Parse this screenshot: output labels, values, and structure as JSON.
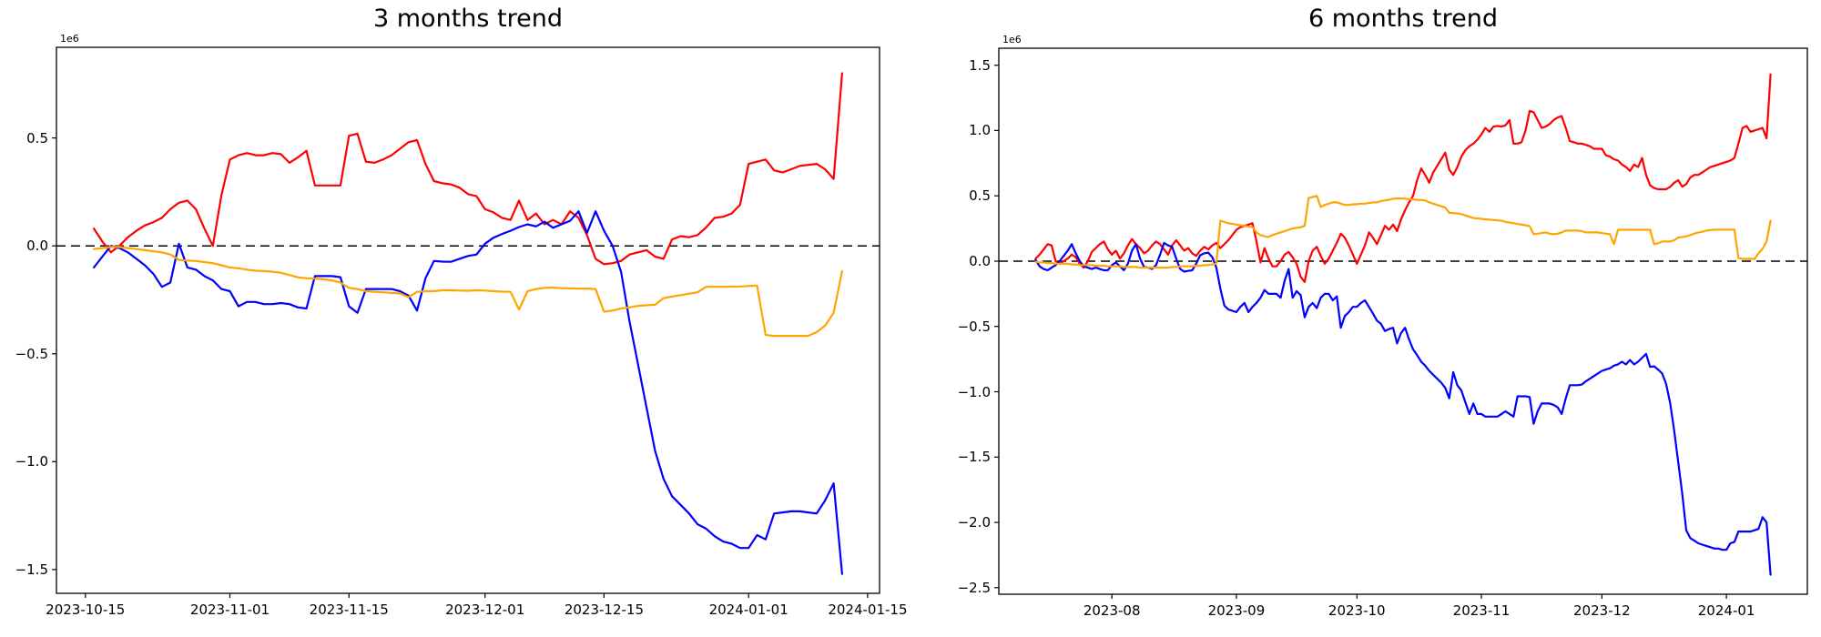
{
  "page": {
    "background": "#ffffff"
  },
  "chart_data": [
    {
      "type": "line",
      "title": "3 months trend",
      "offset_label": "1e6",
      "unit_scale": 1000000,
      "grid": false,
      "legend": null,
      "zero_line": {
        "style": "dashed",
        "color": "#000000"
      },
      "x_start_date": "2023-10-16",
      "x_tick_dates": [
        "2023-10-15",
        "2023-11-01",
        "2023-11-15",
        "2023-12-01",
        "2023-12-15",
        "2024-01-01",
        "2024-01-15"
      ],
      "x_tick_labels": [
        "2023-10-15",
        "2023-11-01",
        "2023-11-15",
        "2023-12-01",
        "2023-12-15",
        "2024-01-01",
        "2024-01-15"
      ],
      "y_tick_values": [
        0.5,
        0.0,
        -0.5,
        -1.0,
        -1.5
      ],
      "y_tick_labels": [
        "0.5",
        "0.0",
        "−0.5",
        "−1.0",
        "−1.5"
      ],
      "ylim": [
        -1.61,
        0.92
      ],
      "series": [
        {
          "name": "series-red",
          "color": "#ff0000",
          "values": [
            0.08,
            0.02,
            -0.03,
            0.0,
            0.04,
            0.07,
            0.095,
            0.11,
            0.13,
            0.17,
            0.2,
            0.21,
            0.17,
            0.08,
            0.0,
            0.235,
            0.4,
            0.42,
            0.43,
            0.42,
            0.42,
            0.43,
            0.425,
            0.385,
            0.41,
            0.44,
            0.28,
            0.28,
            0.28,
            0.28,
            0.51,
            0.52,
            0.39,
            0.385,
            0.4,
            0.42,
            0.45,
            0.48,
            0.49,
            0.38,
            0.3,
            0.29,
            0.285,
            0.27,
            0.24,
            0.23,
            0.17,
            0.155,
            0.13,
            0.12,
            0.21,
            0.12,
            0.15,
            0.1,
            0.12,
            0.1,
            0.16,
            0.13,
            0.05,
            -0.06,
            -0.085,
            -0.08,
            -0.07,
            -0.04,
            -0.03,
            -0.02,
            -0.05,
            -0.06,
            0.03,
            0.045,
            0.04,
            0.05,
            0.085,
            0.13,
            0.135,
            0.15,
            0.19,
            0.38,
            0.39,
            0.4,
            0.35,
            0.34,
            0.355,
            0.37,
            0.375,
            0.38,
            0.355,
            0.31,
            0.8
          ]
        },
        {
          "name": "series-blue",
          "color": "#0000ff",
          "values": [
            -0.1,
            -0.05,
            0.0,
            -0.01,
            -0.03,
            -0.06,
            -0.09,
            -0.13,
            -0.19,
            -0.17,
            0.01,
            -0.1,
            -0.11,
            -0.14,
            -0.16,
            -0.2,
            -0.21,
            -0.28,
            -0.26,
            -0.26,
            -0.27,
            -0.27,
            -0.265,
            -0.27,
            -0.285,
            -0.29,
            -0.14,
            -0.14,
            -0.14,
            -0.145,
            -0.28,
            -0.31,
            -0.2,
            -0.2,
            -0.2,
            -0.2,
            -0.21,
            -0.23,
            -0.3,
            -0.15,
            -0.07,
            -0.073,
            -0.074,
            -0.06,
            -0.047,
            -0.04,
            0.01,
            0.038,
            0.055,
            0.07,
            0.087,
            0.1,
            0.09,
            0.112,
            0.084,
            0.1,
            0.116,
            0.16,
            0.06,
            0.16,
            0.07,
            0.0,
            -0.12,
            -0.35,
            -0.55,
            -0.75,
            -0.95,
            -1.08,
            -1.16,
            -1.2,
            -1.24,
            -1.29,
            -1.31,
            -1.345,
            -1.37,
            -1.38,
            -1.4,
            -1.4,
            -1.34,
            -1.36,
            -1.24,
            -1.235,
            -1.23,
            -1.23,
            -1.235,
            -1.24,
            -1.18,
            -1.1,
            -1.52
          ]
        },
        {
          "name": "series-orange",
          "color": "#ffa500",
          "values": [
            -0.015,
            -0.01,
            -0.005,
            -0.005,
            -0.01,
            -0.015,
            -0.02,
            -0.025,
            -0.03,
            -0.04,
            -0.065,
            -0.068,
            -0.07,
            -0.075,
            -0.08,
            -0.09,
            -0.1,
            -0.104,
            -0.11,
            -0.115,
            -0.117,
            -0.12,
            -0.125,
            -0.135,
            -0.146,
            -0.15,
            -0.152,
            -0.155,
            -0.16,
            -0.17,
            -0.195,
            -0.2,
            -0.21,
            -0.213,
            -0.215,
            -0.218,
            -0.22,
            -0.238,
            -0.213,
            -0.21,
            -0.21,
            -0.206,
            -0.206,
            -0.207,
            -0.208,
            -0.206,
            -0.207,
            -0.21,
            -0.212,
            -0.213,
            -0.295,
            -0.21,
            -0.2,
            -0.195,
            -0.193,
            -0.196,
            -0.197,
            -0.198,
            -0.198,
            -0.2,
            -0.305,
            -0.3,
            -0.29,
            -0.285,
            -0.278,
            -0.275,
            -0.273,
            -0.242,
            -0.235,
            -0.228,
            -0.222,
            -0.215,
            -0.19,
            -0.19,
            -0.19,
            -0.189,
            -0.188,
            -0.186,
            -0.184,
            -0.413,
            -0.417,
            -0.417,
            -0.417,
            -0.417,
            -0.417,
            -0.4,
            -0.37,
            -0.31,
            -0.117
          ]
        }
      ]
    },
    {
      "type": "line",
      "title": "6 months trend",
      "offset_label": "1e6",
      "unit_scale": 1000000,
      "grid": false,
      "legend": null,
      "zero_line": {
        "style": "dashed",
        "color": "#000000"
      },
      "x_start_date": "2023-07-13",
      "x_tick_dates": [
        "2023-08-01",
        "2023-09-01",
        "2023-10-01",
        "2023-11-01",
        "2023-12-01",
        "2024-01-01"
      ],
      "x_tick_labels": [
        "2023-08",
        "2023-09",
        "2023-10",
        "2023-11",
        "2023-12",
        "2024-01"
      ],
      "y_tick_values": [
        1.5,
        1.0,
        0.5,
        0.0,
        -0.5,
        -1.0,
        -1.5,
        -2.0,
        -2.5
      ],
      "y_tick_labels": [
        "1.5",
        "1.0",
        "0.5",
        "0.0",
        "−0.5",
        "−1.0",
        "−1.5",
        "−2.0",
        "−2.5"
      ],
      "ylim": [
        -2.55,
        1.63
      ],
      "series": [
        {
          "name": "series-red",
          "color": "#ff0000",
          "values": [
            0.02,
            0.05,
            0.09,
            0.13,
            0.12,
            0.0,
            -0.02,
            0.0,
            0.02,
            0.05,
            0.03,
            -0.02,
            -0.05,
            0.0,
            0.07,
            0.1,
            0.13,
            0.15,
            0.09,
            0.05,
            0.08,
            0.02,
            0.06,
            0.12,
            0.17,
            0.13,
            0.1,
            0.06,
            0.08,
            0.12,
            0.15,
            0.13,
            0.09,
            0.05,
            0.12,
            0.16,
            0.12,
            0.08,
            0.1,
            0.06,
            0.04,
            0.08,
            0.11,
            0.09,
            0.12,
            0.14,
            0.1,
            0.13,
            0.16,
            0.2,
            0.24,
            0.26,
            0.27,
            0.28,
            0.29,
            0.15,
            -0.01,
            0.1,
            0.02,
            -0.04,
            -0.04,
            0.0,
            0.05,
            0.07,
            0.03,
            -0.02,
            -0.12,
            -0.16,
            0.0,
            0.08,
            0.11,
            0.04,
            -0.02,
            0.02,
            0.08,
            0.14,
            0.21,
            0.18,
            0.12,
            0.05,
            -0.02,
            0.05,
            0.12,
            0.22,
            0.18,
            0.13,
            0.2,
            0.27,
            0.24,
            0.28,
            0.23,
            0.32,
            0.39,
            0.45,
            0.5,
            0.62,
            0.71,
            0.66,
            0.6,
            0.68,
            0.73,
            0.78,
            0.83,
            0.7,
            0.66,
            0.72,
            0.8,
            0.85,
            0.88,
            0.9,
            0.93,
            0.97,
            1.02,
            0.99,
            1.03,
            1.035,
            1.03,
            1.04,
            1.08,
            0.9,
            0.9,
            0.91,
            1.0,
            1.15,
            1.14,
            1.08,
            1.02,
            1.03,
            1.05,
            1.08,
            1.1,
            1.11,
            1.02,
            0.92,
            0.91,
            0.9,
            0.9,
            0.89,
            0.88,
            0.86,
            0.86,
            0.86,
            0.81,
            0.8,
            0.78,
            0.77,
            0.74,
            0.72,
            0.69,
            0.74,
            0.72,
            0.79,
            0.66,
            0.58,
            0.56,
            0.55,
            0.55,
            0.55,
            0.57,
            0.6,
            0.62,
            0.57,
            0.59,
            0.64,
            0.66,
            0.66,
            0.68,
            0.7,
            0.72,
            0.73,
            0.74,
            0.75,
            0.76,
            0.77,
            0.79,
            0.9,
            1.02,
            1.035,
            0.99,
            1.0,
            1.01,
            1.02,
            0.94,
            1.43
          ]
        },
        {
          "name": "series-blue",
          "color": "#0000ff",
          "values": [
            0.01,
            -0.04,
            -0.06,
            -0.07,
            -0.05,
            -0.03,
            0.0,
            0.04,
            0.08,
            0.13,
            0.06,
            0.0,
            -0.04,
            -0.05,
            -0.06,
            -0.05,
            -0.06,
            -0.07,
            -0.07,
            -0.03,
            -0.01,
            -0.04,
            -0.07,
            -0.02,
            0.08,
            0.13,
            0.02,
            -0.045,
            -0.05,
            -0.06,
            -0.03,
            0.05,
            0.14,
            0.12,
            0.11,
            0.02,
            -0.06,
            -0.08,
            -0.075,
            -0.07,
            -0.02,
            0.045,
            0.06,
            0.065,
            0.03,
            -0.05,
            -0.21,
            -0.34,
            -0.37,
            -0.38,
            -0.39,
            -0.35,
            -0.32,
            -0.39,
            -0.35,
            -0.32,
            -0.28,
            -0.22,
            -0.25,
            -0.25,
            -0.25,
            -0.28,
            -0.15,
            -0.06,
            -0.28,
            -0.23,
            -0.26,
            -0.43,
            -0.35,
            -0.32,
            -0.36,
            -0.28,
            -0.25,
            -0.25,
            -0.3,
            -0.27,
            -0.51,
            -0.42,
            -0.39,
            -0.35,
            -0.35,
            -0.32,
            -0.3,
            -0.35,
            -0.4,
            -0.455,
            -0.48,
            -0.535,
            -0.52,
            -0.51,
            -0.63,
            -0.55,
            -0.51,
            -0.6,
            -0.675,
            -0.72,
            -0.77,
            -0.8,
            -0.84,
            -0.87,
            -0.9,
            -0.93,
            -0.97,
            -1.05,
            -0.85,
            -0.95,
            -0.99,
            -1.08,
            -1.17,
            -1.09,
            -1.17,
            -1.17,
            -1.19,
            -1.19,
            -1.19,
            -1.19,
            -1.17,
            -1.15,
            -1.17,
            -1.19,
            -1.035,
            -1.035,
            -1.035,
            -1.04,
            -1.245,
            -1.15,
            -1.09,
            -1.09,
            -1.09,
            -1.1,
            -1.12,
            -1.17,
            -1.05,
            -0.95,
            -0.95,
            -0.95,
            -0.945,
            -0.92,
            -0.9,
            -0.88,
            -0.86,
            -0.84,
            -0.83,
            -0.82,
            -0.8,
            -0.79,
            -0.77,
            -0.79,
            -0.757,
            -0.79,
            -0.77,
            -0.74,
            -0.71,
            -0.81,
            -0.805,
            -0.83,
            -0.86,
            -0.94,
            -1.09,
            -1.3,
            -1.54,
            -1.78,
            -2.06,
            -2.12,
            -2.14,
            -2.16,
            -2.17,
            -2.18,
            -2.19,
            -2.2,
            -2.2,
            -2.21,
            -2.21,
            -2.16,
            -2.15,
            -2.07,
            -2.07,
            -2.07,
            -2.07,
            -2.06,
            -2.05,
            -1.96,
            -2.0,
            -2.4
          ]
        },
        {
          "name": "series-orange",
          "color": "#ffa500",
          "values": [
            -0.005,
            -0.01,
            -0.01,
            -0.015,
            -0.015,
            -0.02,
            -0.02,
            -0.02,
            -0.02,
            -0.025,
            -0.025,
            -0.03,
            -0.03,
            -0.03,
            -0.03,
            -0.035,
            -0.035,
            -0.035,
            -0.04,
            -0.04,
            -0.04,
            -0.04,
            -0.045,
            -0.045,
            -0.045,
            -0.045,
            -0.05,
            -0.05,
            -0.05,
            -0.05,
            -0.05,
            -0.05,
            -0.05,
            -0.05,
            -0.045,
            -0.045,
            -0.04,
            -0.04,
            -0.04,
            -0.04,
            -0.035,
            -0.035,
            -0.03,
            -0.03,
            -0.025,
            -0.02,
            0.31,
            0.3,
            0.29,
            0.285,
            0.28,
            0.275,
            0.27,
            0.265,
            0.26,
            0.22,
            0.2,
            0.19,
            0.185,
            0.2,
            0.21,
            0.22,
            0.23,
            0.24,
            0.25,
            0.255,
            0.26,
            0.27,
            0.485,
            0.49,
            0.5,
            0.415,
            0.43,
            0.44,
            0.45,
            0.45,
            0.44,
            0.43,
            0.43,
            0.435,
            0.436,
            0.44,
            0.44,
            0.445,
            0.45,
            0.45,
            0.46,
            0.465,
            0.47,
            0.478,
            0.48,
            0.48,
            0.478,
            0.475,
            0.473,
            0.47,
            0.468,
            0.464,
            0.45,
            0.44,
            0.43,
            0.42,
            0.41,
            0.37,
            0.368,
            0.365,
            0.36,
            0.35,
            0.34,
            0.33,
            0.327,
            0.324,
            0.32,
            0.318,
            0.315,
            0.312,
            0.31,
            0.3,
            0.295,
            0.29,
            0.285,
            0.28,
            0.275,
            0.268,
            0.206,
            0.21,
            0.215,
            0.22,
            0.21,
            0.206,
            0.21,
            0.22,
            0.234,
            0.234,
            0.234,
            0.234,
            0.23,
            0.22,
            0.22,
            0.22,
            0.22,
            0.215,
            0.21,
            0.206,
            0.13,
            0.24,
            0.24,
            0.24,
            0.24,
            0.24,
            0.24,
            0.24,
            0.24,
            0.24,
            0.13,
            0.137,
            0.15,
            0.15,
            0.15,
            0.16,
            0.18,
            0.185,
            0.19,
            0.199,
            0.21,
            0.22,
            0.225,
            0.234,
            0.238,
            0.241,
            0.241,
            0.241,
            0.241,
            0.241,
            0.241,
            0.024,
            0.017,
            0.017,
            0.017,
            0.017,
            0.06,
            0.094,
            0.15,
            0.31
          ]
        }
      ]
    }
  ]
}
